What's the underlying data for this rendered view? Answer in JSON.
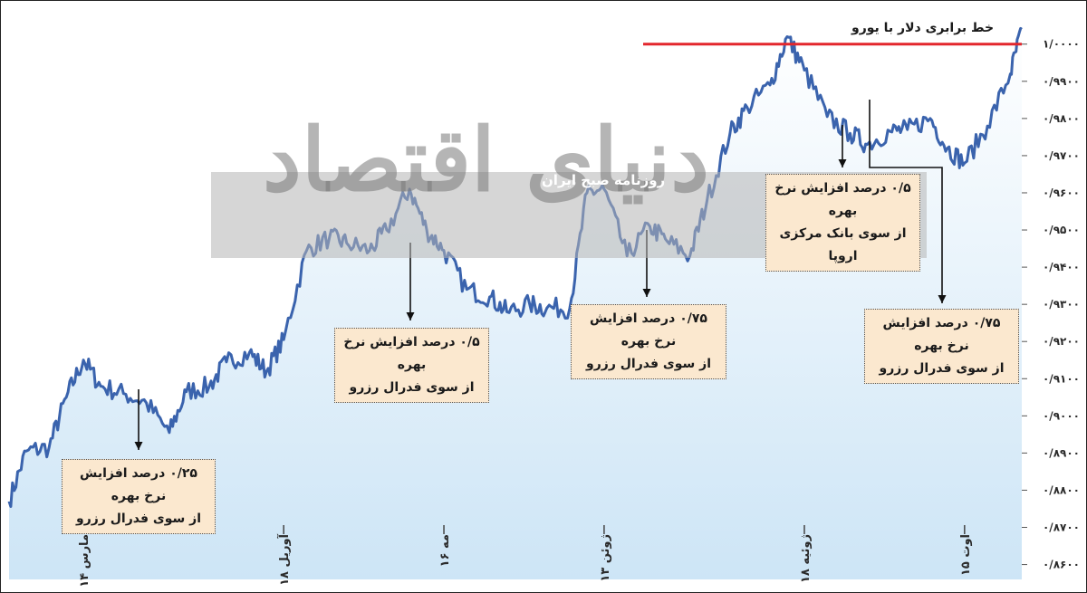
{
  "chart_data": {
    "type": "line",
    "series": [
      {
        "name": "",
        "color": "#3a63ad",
        "x": [
          "2022-03-01",
          "2022-03-04",
          "2022-03-08",
          "2022-03-11",
          "2022-03-14",
          "2022-03-17",
          "2022-03-21",
          "2022-03-25",
          "2022-03-29",
          "2022-04-01",
          "2022-04-05",
          "2022-04-08",
          "2022-04-12",
          "2022-04-15",
          "2022-04-18",
          "2022-04-22",
          "2022-04-26",
          "2022-04-29",
          "2022-05-03",
          "2022-05-06",
          "2022-05-10",
          "2022-05-13",
          "2022-05-16",
          "2022-05-20",
          "2022-05-24",
          "2022-05-27",
          "2022-05-31",
          "2022-06-03",
          "2022-06-07",
          "2022-06-10",
          "2022-06-13",
          "2022-06-17",
          "2022-06-21",
          "2022-06-24",
          "2022-06-28",
          "2022-07-01",
          "2022-07-05",
          "2022-07-08",
          "2022-07-12",
          "2022-07-15",
          "2022-07-18",
          "2022-07-22",
          "2022-07-26",
          "2022-07-29",
          "2022-08-02",
          "2022-08-05",
          "2022-08-09",
          "2022-08-12",
          "2022-08-15",
          "2022-08-19",
          "2022-08-23",
          "2022-08-25"
        ],
        "values": [
          0.877,
          0.8905,
          0.8915,
          0.905,
          0.915,
          0.908,
          0.906,
          0.9035,
          0.8955,
          0.9065,
          0.908,
          0.9145,
          0.917,
          0.912,
          0.9205,
          0.9445,
          0.948,
          0.9465,
          0.9445,
          0.95,
          0.961,
          0.95,
          0.9445,
          0.934,
          0.932,
          0.928,
          0.93,
          0.929,
          0.929,
          0.96,
          0.961,
          0.943,
          0.951,
          0.947,
          0.943,
          0.958,
          0.976,
          0.983,
          0.989,
          1.002,
          0.993,
          0.9805,
          0.976,
          0.973,
          0.9765,
          0.977,
          0.98,
          0.972,
          0.968,
          0.978,
          0.992,
          1.004
        ]
      }
    ],
    "ylim": [
      0.856,
      1.007
    ],
    "yticks": [
      0.86,
      0.87,
      0.88,
      0.89,
      0.9,
      0.91,
      0.92,
      0.93,
      0.94,
      0.95,
      0.96,
      0.97,
      0.98,
      0.99,
      1.0
    ],
    "ytick_labels": [
      "۰/۸۶۰۰",
      "۰/۸۷۰۰",
      "۰/۸۸۰۰",
      "۰/۸۹۰۰",
      "۰/۹۰۰۰",
      "۰/۹۱۰۰",
      "۰/۹۲۰۰",
      "۰/۹۳۰۰",
      "۰/۹۴۰۰",
      "۰/۹۵۰۰",
      "۰/۹۶۰۰",
      "۰/۹۷۰۰",
      "۰/۹۸۰۰",
      "۰/۹۹۰۰",
      "۱/۰۰۰۰"
    ],
    "xticks": [
      "2022-03-14",
      "2022-04-18",
      "2022-05-16",
      "2022-06-13",
      "2022-07-18",
      "2022-08-15"
    ],
    "xtick_labels": [
      "۱۴ مارس",
      "۱۸ آوریل",
      "۱۶ مه",
      "۱۳ ژوئن",
      "۱۸ ژوئیه",
      "۱۵ اوت"
    ],
    "parity_line": {
      "value": 1.0,
      "label": "خط برابری دلار با یورو",
      "color": "#e3262c"
    },
    "annotations": [
      {
        "line1": "۰/۲۵ درصد افزایش نرخ بهره",
        "line2": "از سوی فدرال رزرو",
        "x": "2022-03-17"
      },
      {
        "line1": "۰/۵ درصد افزایش نرخ بهره",
        "line2": "از سوی فدرال رزرو",
        "x": "2022-05-03"
      },
      {
        "line1": "۰/۷۵ درصد افزایش نرخ بهره",
        "line2": "از سوی فدرال رزرو",
        "x": "2022-06-15"
      },
      {
        "line1": "۰/۵ درصد افزایش نرخ بهره",
        "line2": "از سوی بانک مرکزی اروپا",
        "x": "2022-07-21"
      },
      {
        "line1": "۰/۷۵ درصد افزایش نرخ بهره",
        "line2": "از سوی فدرال رزرو",
        "x": "2022-07-27"
      }
    ],
    "grid": false,
    "fill": "#cfe6f7"
  },
  "watermark": {
    "big": "دنیای اقتصاد",
    "small": "روزنامه صبح ایران"
  }
}
